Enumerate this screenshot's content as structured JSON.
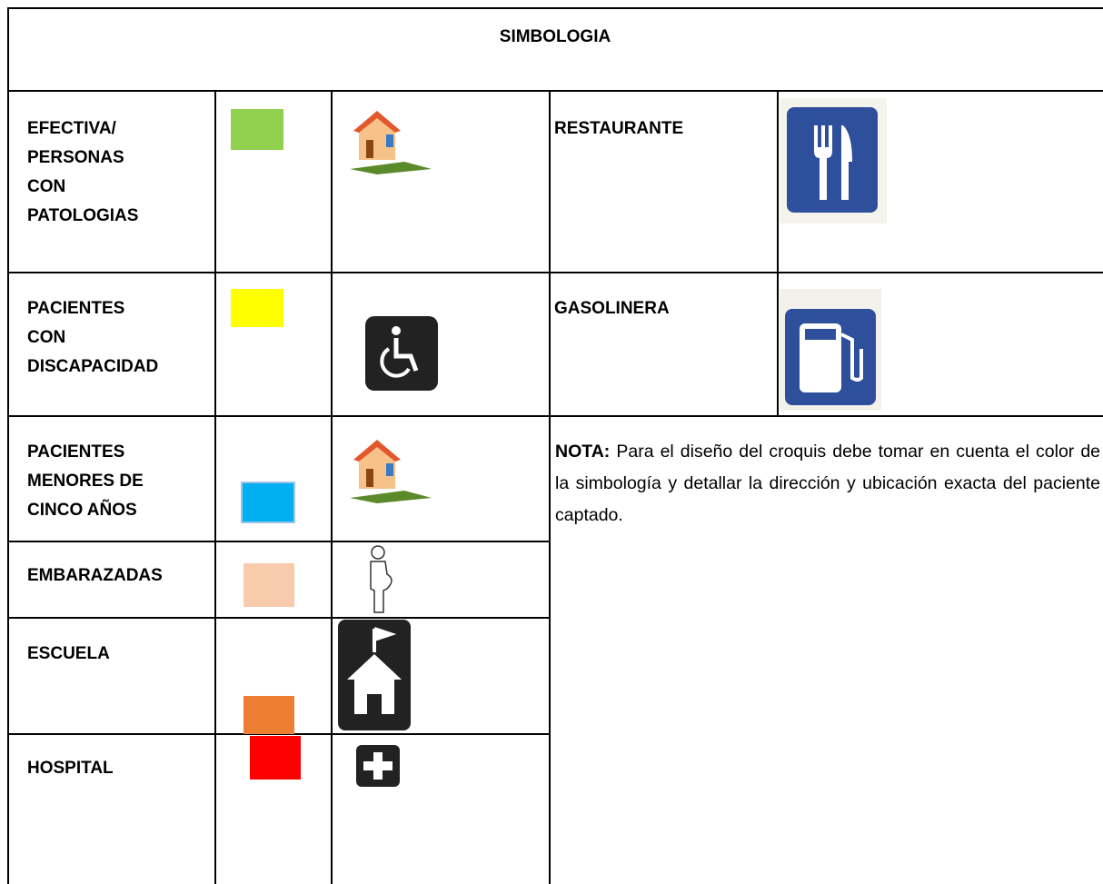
{
  "header": {
    "title": "SIMBOLOGIA"
  },
  "legend": {
    "rows": [
      {
        "label": "EFECTIVA/ PERSONAS CON PATOLOGIAS"
      },
      {
        "label": "PACIENTES CON DISCAPACIDAD"
      },
      {
        "label": "PACIENTES MENORES DE CINCO AÑOS"
      },
      {
        "label": "EMBARAZADAS"
      },
      {
        "label": "ESCUELA"
      },
      {
        "label": "HOSPITAL"
      }
    ]
  },
  "places": [
    {
      "label": "RESTAURANTE"
    },
    {
      "label": "GASOLINERA"
    }
  ],
  "note": {
    "label": "NOTA:",
    "text": "Para el diseño del croquis debe tomar en cuenta el color de la simbología y detallar la dirección y ubicación exacta del paciente captado."
  }
}
